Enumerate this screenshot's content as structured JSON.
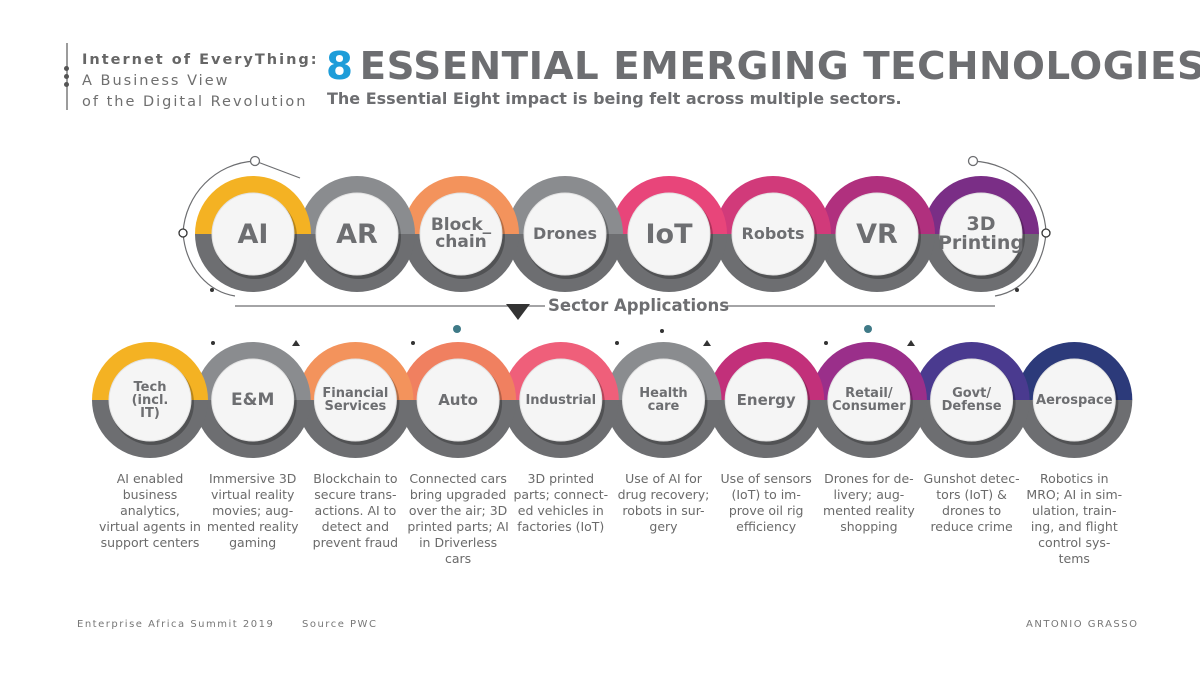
{
  "header": {
    "brand_line1": "Internet of EveryThing:",
    "brand_line2": "A Business View",
    "brand_line3": "of the Digital Revolution",
    "title_number": "8",
    "title_text": "ESSENTIAL EMERGING TECHNOLOGIES",
    "subtitle": "The Essential Eight impact is being felt across multiple sectors."
  },
  "technologies": [
    {
      "label": "AI",
      "color": "#f4b223"
    },
    {
      "label": "AR",
      "color": "#8a8c8f"
    },
    {
      "label": "Block_\nchain",
      "color": "#f3935c"
    },
    {
      "label": "Drones",
      "color": "#8a8c8f"
    },
    {
      "label": "IoT",
      "color": "#e8457a"
    },
    {
      "label": "Robots",
      "color": "#d13a7a"
    },
    {
      "label": "VR",
      "color": "#b0307e"
    },
    {
      "label": "3D\nPrinting",
      "color": "#7a2e86"
    }
  ],
  "sector_title": "Sector Applications",
  "sectors": [
    {
      "label": "Tech\n(incl.\nIT)",
      "color": "#f4b223",
      "description": "AI enabled business analytics, virtual agents in support centers"
    },
    {
      "label": "E&M",
      "color": "#8a8c8f",
      "description": "Immersive 3D virtual reality movies; aug-mented reality gaming"
    },
    {
      "label": "Financial\nServices",
      "color": "#f3935c",
      "description": "Blockchain to secure trans-actions. AI to detect and prevent fraud"
    },
    {
      "label": "Auto",
      "color": "#f08060",
      "description": "Connected cars bring upgraded over the air; 3D printed parts; AI in Driverless cars"
    },
    {
      "label": "Industrial",
      "color": "#ef5f7a",
      "description": "3D printed parts; connect-ed vehicles in factories (IoT)"
    },
    {
      "label": "Health\ncare",
      "color": "#8a8c8f",
      "description": "Use of AI for drug recovery; robots in sur-gery"
    },
    {
      "label": "Energy",
      "color": "#c2307a",
      "description": "Use of sensors (IoT) to im-prove oil rig efficiency"
    },
    {
      "label": "Retail/\nConsumer",
      "color": "#9a2f8a",
      "description": "Drones for de-livery; aug-mented reality shopping"
    },
    {
      "label": "Govt/\nDefense",
      "color": "#4a3a8f",
      "description": "Gunshot detec-tors (IoT) & drones to reduce crime"
    },
    {
      "label": "Aerospace",
      "color": "#2c3a7a",
      "description": "Robotics in MRO; AI in sim-ulation, train-ing, and flight control sys-tems"
    }
  ],
  "footer": {
    "event": "Enterprise Africa Summit 2019",
    "source": "Source PWC",
    "author": "ANTONIO GRASSO"
  },
  "colors": {
    "ring_gray": "#6d6e71",
    "accent_blue": "#1e9dd9",
    "text_gray": "#6d6e71"
  }
}
